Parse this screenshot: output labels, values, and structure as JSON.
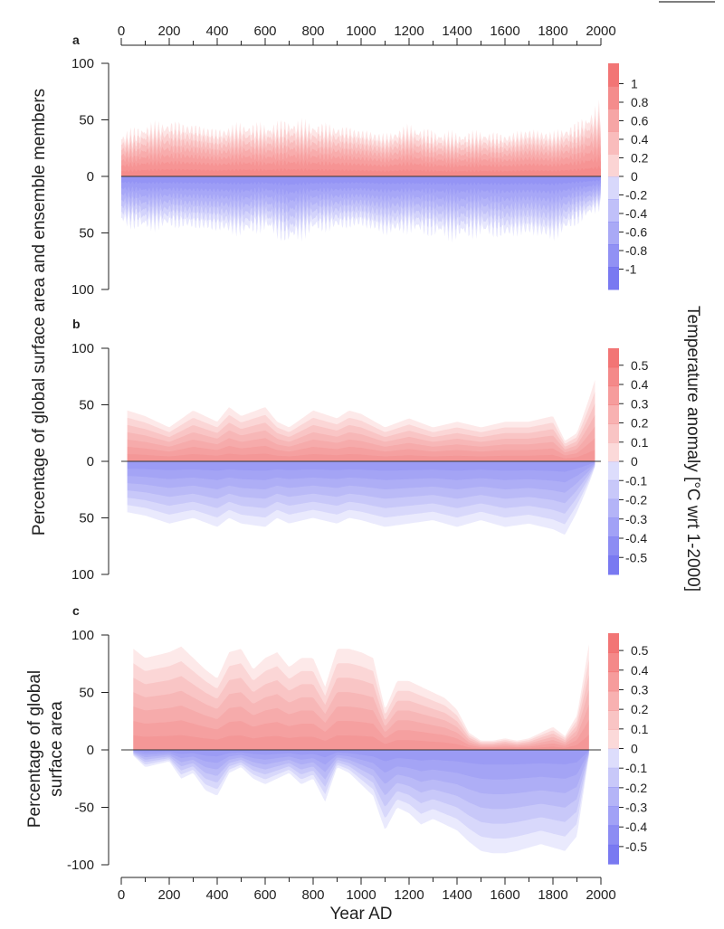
{
  "figure": {
    "top_axis_label": "",
    "x_title": "Year AD",
    "y_title_ab": "Percentage of global surface area and ensemble members",
    "y_title_c_line1": "Percentage of global",
    "y_title_c_line2": "surface area",
    "colorbar_title": "Temperature anomaly [°C wrt 1-2000]",
    "colors": {
      "warm": "#f06060",
      "cool": "#6a6af0",
      "axis": "#222222"
    }
  },
  "chart_data": [
    {
      "panel": "a",
      "type": "area",
      "xlim": [
        0,
        2000
      ],
      "ylim": [
        -100,
        100
      ],
      "x_ticks": [
        0,
        200,
        400,
        600,
        800,
        1000,
        1200,
        1400,
        1600,
        1800,
        2000
      ],
      "y_ticks": [
        100,
        50,
        0,
        -50,
        -100
      ],
      "y_tick_labels": [
        "100",
        "50",
        "0",
        "50",
        "100"
      ],
      "colorbar": {
        "labels": [
          "1",
          "0.8",
          "0.6",
          "0.4",
          "0.2",
          "0",
          "-0.2",
          "-0.4",
          "-0.6",
          "-0.8",
          "-1"
        ],
        "steps": 10
      },
      "series": [
        {
          "role": "positive_envelope",
          "x": [
            0,
            100,
            200,
            300,
            400,
            500,
            600,
            700,
            800,
            900,
            1000,
            1100,
            1200,
            1300,
            1400,
            1500,
            1600,
            1700,
            1800,
            1900,
            2000
          ],
          "values": [
            40,
            48,
            52,
            50,
            45,
            50,
            48,
            52,
            50,
            48,
            45,
            40,
            48,
            42,
            40,
            42,
            40,
            45,
            42,
            50,
            68
          ]
        },
        {
          "role": "negative_envelope",
          "x": [
            0,
            100,
            200,
            300,
            400,
            500,
            600,
            700,
            800,
            900,
            1000,
            1100,
            1200,
            1300,
            1400,
            1500,
            1600,
            1700,
            1800,
            1900,
            2000
          ],
          "values": [
            -45,
            -50,
            -48,
            -50,
            -52,
            -55,
            -50,
            -62,
            -52,
            -50,
            -48,
            -55,
            -52,
            -55,
            -58,
            -55,
            -58,
            -55,
            -60,
            -45,
            -30
          ]
        }
      ]
    },
    {
      "panel": "b",
      "type": "area",
      "xlim": [
        0,
        2000
      ],
      "ylim": [
        -100,
        100
      ],
      "x_ticks": [
        0,
        200,
        400,
        600,
        800,
        1000,
        1200,
        1400,
        1600,
        1800,
        2000
      ],
      "y_ticks": [
        100,
        50,
        0,
        -50,
        -100
      ],
      "y_tick_labels": [
        "100",
        "50",
        "0",
        "50",
        "100"
      ],
      "colorbar": {
        "labels": [
          "0.5",
          "0.4",
          "0.3",
          "0.2",
          "0.1",
          "0",
          "-0.1",
          "-0.2",
          "-0.3",
          "-0.4",
          "-0.5"
        ],
        "steps": 12
      },
      "series": [
        {
          "role": "positive_envelope",
          "x": [
            25,
            100,
            200,
            300,
            400,
            450,
            500,
            600,
            650,
            700,
            800,
            900,
            950,
            1000,
            1100,
            1200,
            1300,
            1400,
            1500,
            1600,
            1700,
            1800,
            1850,
            1900,
            1950,
            1975
          ],
          "values": [
            45,
            40,
            30,
            45,
            35,
            48,
            40,
            48,
            35,
            30,
            45,
            38,
            45,
            42,
            30,
            38,
            30,
            35,
            30,
            35,
            35,
            40,
            18,
            25,
            55,
            72
          ]
        },
        {
          "role": "negative_envelope",
          "x": [
            25,
            100,
            200,
            300,
            400,
            450,
            500,
            600,
            650,
            700,
            800,
            900,
            950,
            1000,
            1100,
            1200,
            1300,
            1400,
            1500,
            1600,
            1700,
            1800,
            1850,
            1900,
            1950,
            1975
          ],
          "values": [
            -45,
            -48,
            -55,
            -50,
            -58,
            -50,
            -55,
            -58,
            -50,
            -55,
            -50,
            -55,
            -50,
            -52,
            -58,
            -55,
            -52,
            -58,
            -52,
            -58,
            -55,
            -60,
            -65,
            -45,
            -20,
            -5
          ]
        }
      ]
    },
    {
      "panel": "c",
      "type": "area",
      "xlim": [
        0,
        2000
      ],
      "ylim": [
        -100,
        100
      ],
      "x_ticks": [
        0,
        200,
        400,
        600,
        800,
        1000,
        1200,
        1400,
        1600,
        1800,
        2000
      ],
      "y_ticks": [
        100,
        50,
        0,
        -50,
        -100
      ],
      "y_tick_labels": [
        "100",
        "50",
        "0",
        "-50",
        "-100"
      ],
      "colorbar": {
        "labels": [
          "0.5",
          "0.4",
          "0.3",
          "0.2",
          "0.1",
          "0",
          "-0.1",
          "-0.2",
          "-0.3",
          "-0.4",
          "-0.5"
        ],
        "steps": 12
      },
      "series": [
        {
          "role": "positive_envelope",
          "x": [
            50,
            100,
            200,
            250,
            300,
            350,
            400,
            450,
            500,
            550,
            600,
            650,
            700,
            750,
            800,
            850,
            900,
            950,
            1000,
            1050,
            1100,
            1150,
            1200,
            1250,
            1300,
            1350,
            1400,
            1450,
            1500,
            1550,
            1600,
            1650,
            1700,
            1750,
            1800,
            1850,
            1900,
            1925,
            1950
          ],
          "values": [
            88,
            80,
            85,
            90,
            80,
            70,
            62,
            85,
            88,
            70,
            80,
            85,
            72,
            80,
            80,
            55,
            88,
            88,
            85,
            80,
            35,
            60,
            60,
            55,
            50,
            45,
            35,
            15,
            8,
            8,
            10,
            8,
            10,
            15,
            20,
            12,
            30,
            60,
            92
          ]
        },
        {
          "role": "negative_envelope",
          "x": [
            50,
            100,
            200,
            250,
            300,
            350,
            400,
            450,
            500,
            550,
            600,
            650,
            700,
            750,
            800,
            850,
            900,
            950,
            1000,
            1050,
            1100,
            1150,
            1200,
            1250,
            1300,
            1350,
            1400,
            1450,
            1500,
            1550,
            1600,
            1650,
            1700,
            1750,
            1800,
            1850,
            1900,
            1925,
            1950
          ],
          "values": [
            -5,
            -15,
            -10,
            -25,
            -20,
            -35,
            -40,
            -20,
            -15,
            -25,
            -30,
            -25,
            -20,
            -30,
            -25,
            -45,
            -15,
            -20,
            -30,
            -40,
            -70,
            -50,
            -55,
            -65,
            -60,
            -65,
            -70,
            -80,
            -88,
            -90,
            -90,
            -88,
            -85,
            -82,
            -85,
            -88,
            -75,
            -40,
            -5
          ]
        }
      ]
    }
  ]
}
